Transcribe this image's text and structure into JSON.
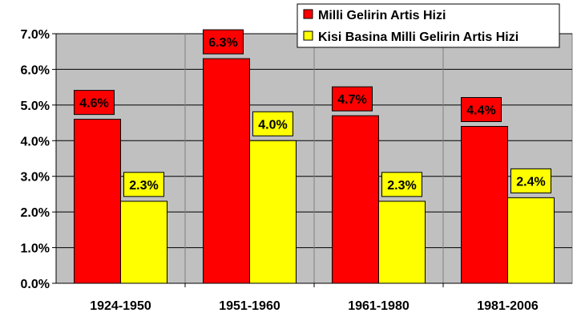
{
  "chart_data": {
    "type": "bar",
    "categories": [
      "1924-1950",
      "1951-1960",
      "1961-1980",
      "1981-2006"
    ],
    "series": [
      {
        "name": "Milli Gelirin Artis Hizi",
        "color": "#ff0000",
        "values": [
          4.6,
          6.3,
          4.7,
          4.4
        ],
        "labels": [
          "4.6%",
          "6.3%",
          "4.7%",
          "4.4%"
        ]
      },
      {
        "name": "Kisi Basina Milli Gelirin Artis Hizi",
        "color": "#ffff00",
        "values": [
          2.3,
          4.0,
          2.3,
          2.4
        ],
        "labels": [
          "2.3%",
          "4.0%",
          "2.3%",
          "2.4%"
        ]
      }
    ],
    "ylim": [
      0,
      7
    ],
    "yticks": [
      "0.0%",
      "1.0%",
      "2.0%",
      "3.0%",
      "4.0%",
      "5.0%",
      "6.0%",
      "7.0%"
    ],
    "plot_background": "#c0c0c0",
    "grid": true,
    "legend": "top-right",
    "title": "",
    "xlabel": "",
    "ylabel": ""
  }
}
